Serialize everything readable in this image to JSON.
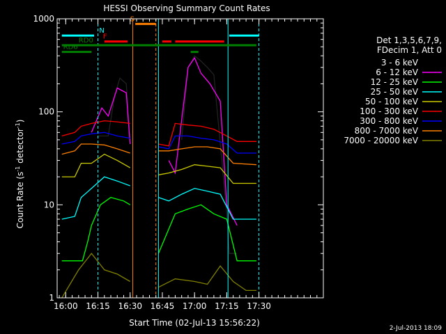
{
  "chart_data": {
    "type": "line",
    "title": "HESSI Observing Summary Count Rates",
    "xlabel": "Start Time (02-Jul-13 15:56:22)",
    "ylabel_main": "Count Rate (s",
    "ylabel_sup1": "-1",
    "ylabel_mid": " detector",
    "ylabel_sup2": "-1",
    "ylabel_end": ")",
    "yscale": "log",
    "ylim": [
      1,
      1000
    ],
    "xlim_minutes": [
      15.9333,
      18.0
    ],
    "x_ticks": [
      "16:00",
      "16:15",
      "16:30",
      "16:45",
      "17:00",
      "17:15",
      "17:30"
    ],
    "x_tick_minutes": [
      16.0,
      16.25,
      16.5,
      16.75,
      17.0,
      17.25,
      17.5
    ],
    "y_ticks": [
      "1",
      "10",
      "100",
      "1000"
    ],
    "y_tick_values": [
      1,
      10,
      100,
      1000
    ],
    "legend_header": [
      "Det 1,3,5,6,7,9,",
      "FDecim 1, Att 0"
    ],
    "series": [
      {
        "name": "3 - 6 keV",
        "color": "#000000",
        "seg1": [
          [
            16.25,
            55
          ],
          [
            16.33,
            55
          ],
          [
            16.38,
            150
          ],
          [
            16.42,
            230
          ],
          [
            16.47,
            200
          ],
          [
            16.5,
            50
          ]
        ],
        "seg2": [
          [
            16.9,
            50
          ],
          [
            16.95,
            300
          ],
          [
            17.0,
            400
          ],
          [
            17.05,
            350
          ],
          [
            17.1,
            300
          ],
          [
            17.15,
            250
          ],
          [
            17.25,
            8
          ],
          [
            17.27,
            3
          ],
          [
            17.33,
            3
          ]
        ]
      },
      {
        "name": "6 - 12 keV",
        "color": "#ff00ff",
        "seg1": [
          [
            16.2,
            60
          ],
          [
            16.28,
            110
          ],
          [
            16.33,
            90
          ],
          [
            16.4,
            180
          ],
          [
            16.47,
            160
          ],
          [
            16.5,
            45
          ]
        ],
        "seg2": [
          [
            16.8,
            30
          ],
          [
            16.85,
            22
          ],
          [
            16.95,
            300
          ],
          [
            17.0,
            380
          ],
          [
            17.05,
            260
          ],
          [
            17.12,
            200
          ],
          [
            17.2,
            130
          ],
          [
            17.25,
            10
          ],
          [
            17.33,
            6
          ]
        ]
      },
      {
        "name": "12 - 25 keV",
        "color": "#00ff00",
        "seg1": [
          [
            15.97,
            2.5
          ],
          [
            16.13,
            2.5
          ],
          [
            16.17,
            4
          ],
          [
            16.2,
            6
          ],
          [
            16.27,
            10
          ],
          [
            16.35,
            12
          ],
          [
            16.45,
            11
          ],
          [
            16.5,
            10
          ]
        ],
        "seg2": [
          [
            16.72,
            3
          ],
          [
            16.85,
            8
          ],
          [
            16.95,
            9
          ],
          [
            17.05,
            10
          ],
          [
            17.15,
            8
          ],
          [
            17.25,
            7
          ],
          [
            17.33,
            2.5
          ],
          [
            17.48,
            2.5
          ]
        ]
      },
      {
        "name": "25 - 50 keV",
        "color": "#00ffff",
        "seg1": [
          [
            15.97,
            7
          ],
          [
            16.07,
            7.5
          ],
          [
            16.12,
            12
          ],
          [
            16.2,
            15
          ],
          [
            16.3,
            20
          ],
          [
            16.4,
            18
          ],
          [
            16.5,
            16
          ]
        ],
        "seg2": [
          [
            16.72,
            12
          ],
          [
            16.8,
            11
          ],
          [
            16.9,
            13
          ],
          [
            17.0,
            15
          ],
          [
            17.1,
            14
          ],
          [
            17.2,
            13
          ],
          [
            17.3,
            7
          ],
          [
            17.48,
            7
          ]
        ]
      },
      {
        "name": "50 - 100 keV",
        "color": "#cccc00",
        "seg1": [
          [
            15.97,
            20
          ],
          [
            16.07,
            20
          ],
          [
            16.12,
            28
          ],
          [
            16.2,
            28
          ],
          [
            16.3,
            35
          ],
          [
            16.4,
            30
          ],
          [
            16.5,
            25
          ]
        ],
        "seg2": [
          [
            16.72,
            21
          ],
          [
            16.8,
            22
          ],
          [
            16.9,
            24
          ],
          [
            17.0,
            27
          ],
          [
            17.1,
            26
          ],
          [
            17.2,
            25
          ],
          [
            17.3,
            17
          ],
          [
            17.48,
            17
          ]
        ]
      },
      {
        "name": "100 - 300 keV",
        "color": "#ff0000",
        "seg1": [
          [
            15.97,
            55
          ],
          [
            16.07,
            60
          ],
          [
            16.12,
            70
          ],
          [
            16.2,
            75
          ],
          [
            16.3,
            80
          ],
          [
            16.4,
            78
          ],
          [
            16.5,
            75
          ]
        ],
        "seg2": [
          [
            16.72,
            45
          ],
          [
            16.8,
            43
          ],
          [
            16.85,
            75
          ],
          [
            16.95,
            72
          ],
          [
            17.05,
            70
          ],
          [
            17.15,
            65
          ],
          [
            17.25,
            55
          ],
          [
            17.33,
            48
          ],
          [
            17.48,
            48
          ]
        ]
      },
      {
        "name": "300 - 800 keV",
        "color": "#0000ff",
        "seg1": [
          [
            15.97,
            45
          ],
          [
            16.07,
            48
          ],
          [
            16.12,
            55
          ],
          [
            16.2,
            58
          ],
          [
            16.3,
            60
          ],
          [
            16.4,
            55
          ],
          [
            16.5,
            52
          ]
        ],
        "seg2": [
          [
            16.72,
            42
          ],
          [
            16.8,
            40
          ],
          [
            16.85,
            55
          ],
          [
            16.95,
            55
          ],
          [
            17.05,
            52
          ],
          [
            17.15,
            50
          ],
          [
            17.25,
            45
          ],
          [
            17.33,
            36
          ],
          [
            17.48,
            36
          ]
        ]
      },
      {
        "name": "800 - 7000 keV",
        "color": "#ff8000",
        "seg1": [
          [
            15.97,
            35
          ],
          [
            16.07,
            38
          ],
          [
            16.12,
            45
          ],
          [
            16.2,
            45
          ],
          [
            16.3,
            44
          ],
          [
            16.4,
            40
          ],
          [
            16.5,
            36
          ]
        ],
        "seg2": [
          [
            16.72,
            38
          ],
          [
            16.8,
            38
          ],
          [
            16.9,
            40
          ],
          [
            17.0,
            42
          ],
          [
            17.1,
            42
          ],
          [
            17.2,
            40
          ],
          [
            17.3,
            28
          ],
          [
            17.48,
            27
          ]
        ]
      },
      {
        "name": "7000 - 20000 keV",
        "color": "#808000",
        "seg1": [
          [
            15.97,
            1
          ],
          [
            16.1,
            2
          ],
          [
            16.2,
            3
          ],
          [
            16.3,
            2
          ],
          [
            16.4,
            1.8
          ],
          [
            16.5,
            1.5
          ]
        ],
        "seg2": [
          [
            16.72,
            1.3
          ],
          [
            16.85,
            1.6
          ],
          [
            17.0,
            1.5
          ],
          [
            17.1,
            1.4
          ],
          [
            17.2,
            2.2
          ],
          [
            17.3,
            1.5
          ],
          [
            17.4,
            1.2
          ],
          [
            17.48,
            1.2
          ]
        ]
      }
    ],
    "vlines": [
      {
        "minute": 16.25,
        "color": "#00ffff",
        "dash": true
      },
      {
        "minute": 16.52,
        "color": "#ff8000",
        "dash": false
      },
      {
        "minute": 16.7,
        "color": "#ff8000",
        "dash": true
      },
      {
        "minute": 16.72,
        "color": "#00ffff",
        "dash": false
      },
      {
        "minute": 17.26,
        "color": "#00ffff",
        "dash": false
      },
      {
        "minute": 17.5,
        "color": "#00ffff",
        "dash": true
      }
    ],
    "bars": [
      {
        "label": "N",
        "color": "#00ffff",
        "y": 660,
        "segs": [
          [
            15.97,
            16.22
          ],
          [
            17.27,
            17.5
          ]
        ],
        "label_minute": 16.26
      },
      {
        "label": "S",
        "color": "#ff8000",
        "y": 880,
        "segs": [
          [
            16.54,
            16.7
          ]
        ],
        "label_minute": 16.5
      },
      {
        "label": "F",
        "color": "#ff0000",
        "y": 570,
        "segs": [
          [
            16.3,
            16.48
          ],
          [
            16.75,
            16.82
          ],
          [
            16.85,
            17.23
          ]
        ],
        "label_minute": 16.29
      },
      {
        "label": "RD0",
        "color": "#008000",
        "y": 520,
        "segs": [
          [
            15.97,
            17.48
          ]
        ],
        "label_minute": 16.1
      },
      {
        "label": "RD6",
        "color": "#008000",
        "y": 440,
        "segs": [
          [
            15.97,
            16.2
          ],
          [
            16.97,
            17.03
          ]
        ],
        "label_minute": 15.98
      }
    ]
  },
  "footer_date": "2-Jul-2013 18:09"
}
